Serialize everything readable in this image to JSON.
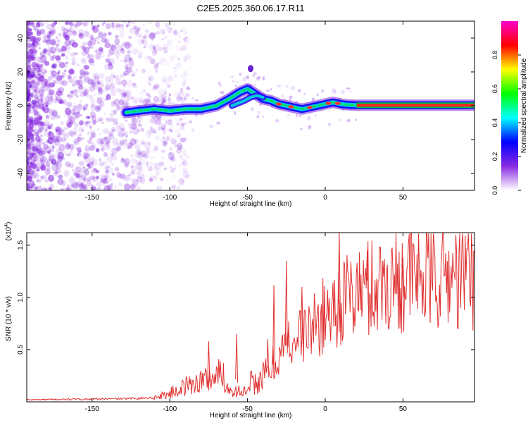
{
  "title": "C2E5.2025.360.06.17.R11",
  "chart_data": [
    {
      "type": "heatmap",
      "name": "spectrogram",
      "xlabel": "Height of straight line (km)",
      "ylabel": "Frequency (Hz)",
      "xlim": [
        -192,
        96
      ],
      "ylim": [
        -50,
        50
      ],
      "xticks": [
        -150,
        -100,
        -50,
        0,
        50
      ],
      "yticks": [
        -40,
        -20,
        0,
        20,
        40
      ],
      "xticklabels": [
        "-150",
        "-100",
        "-50",
        "0",
        "50"
      ],
      "yticklabels": [
        "-40",
        "-20",
        "0",
        "20",
        "40"
      ],
      "noise_region_x": [
        -192,
        -110
      ],
      "signal_track": {
        "x": [
          -128,
          -120,
          -110,
          -100,
          -90,
          -80,
          -70,
          -62,
          -55,
          -50,
          -45,
          -40,
          -35,
          -30,
          -25,
          -20,
          -15,
          -10,
          -5,
          0,
          5,
          10,
          15,
          20,
          95
        ],
        "y": [
          -4,
          -3,
          -2,
          -3,
          -2,
          -2,
          0,
          4,
          8,
          10,
          7,
          4,
          3,
          1,
          0,
          -1,
          -2,
          -1,
          0,
          1,
          2,
          1,
          0.5,
          0.3,
          0.3
        ]
      },
      "branch_track": {
        "x": [
          -60,
          -52,
          -48,
          -44,
          -40
        ],
        "y": [
          0,
          3,
          5,
          6,
          5
        ]
      },
      "isolated_blob": {
        "x": -48,
        "y": 22
      },
      "colorbar": {
        "label": "Normalized spectral amplitude",
        "range": [
          0,
          1
        ],
        "ticks": [
          0,
          0.2,
          0.4,
          0.6,
          0.8
        ],
        "ticklabels": [
          "0.0",
          "0.2",
          "0.4",
          "0.6",
          "0.8"
        ],
        "colors": [
          "#ffffff",
          "#8a2be2",
          "#0000ff",
          "#00ffff",
          "#00ff00",
          "#ffff00",
          "#ff0000",
          "#ff00cc"
        ]
      }
    },
    {
      "type": "line",
      "name": "snr",
      "xlabel": "Height of straight line (km)",
      "ylabel": "SNR (10 * v/v)",
      "scale_label": "(x10",
      "scale_exp": "4",
      "scale_close": ")",
      "xlim": [
        -192,
        96
      ],
      "ylim": [
        0,
        16200
      ],
      "xticks": [
        -150,
        -100,
        -50,
        0,
        50
      ],
      "xticklabels": [
        "-150",
        "-100",
        "-50",
        "0",
        "50"
      ],
      "yticks": [
        5000,
        10000,
        15000
      ],
      "yticklabels": [
        "0.5",
        "1.0",
        "1.5"
      ],
      "line_color": "#e03030",
      "envelope": {
        "x": [
          -192,
          -130,
          -110,
          -100,
          -90,
          -80,
          -70,
          -65,
          -55,
          -45,
          -35,
          -30,
          -25,
          -20,
          -15,
          -10,
          -5,
          0,
          5,
          10,
          15,
          20,
          30,
          40,
          50,
          60,
          70,
          80,
          90,
          96
        ],
        "y": [
          200,
          300,
          400,
          800,
          1500,
          2000,
          2500,
          2800,
          2000,
          1800,
          3000,
          4500,
          5500,
          6000,
          6500,
          7000,
          7500,
          8500,
          9000,
          9500,
          10000,
          10500,
          11000,
          11500,
          11800,
          12000,
          12000,
          12100,
          12200,
          12300
        ]
      },
      "spikes": {
        "x": [
          -75,
          -57,
          -37,
          -33,
          -25,
          -15,
          9,
          27,
          50
        ],
        "y": [
          5800,
          6500,
          6000,
          11200,
          13500,
          11000,
          16200,
          14500,
          13800
        ]
      }
    }
  ]
}
